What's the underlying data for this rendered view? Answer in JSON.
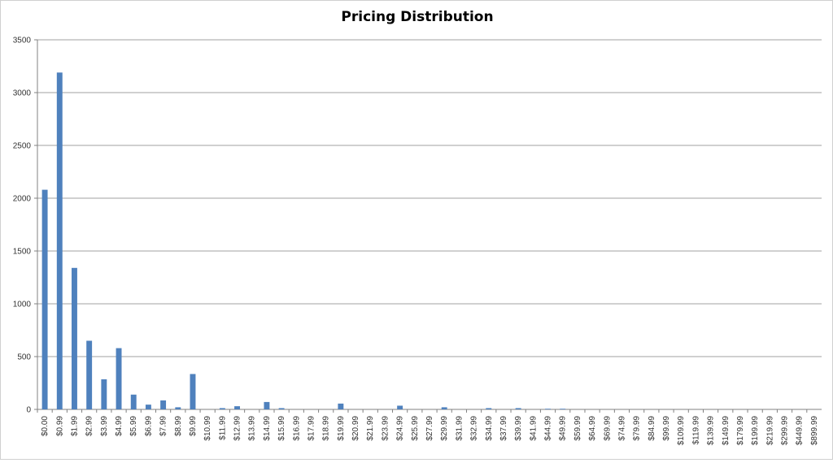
{
  "chart_data": {
    "type": "bar",
    "title": "Pricing Distribution",
    "xlabel": "",
    "ylabel": "",
    "ylim": [
      0,
      3500
    ],
    "yticks": [
      0,
      500,
      1000,
      1500,
      2000,
      2500,
      3000,
      3500
    ],
    "grid": true,
    "legend": "none",
    "bar_color": "#4f81bd",
    "gridline_color": "#a0a0a0",
    "categories": [
      "$0.00",
      "$0.99",
      "$1.99",
      "$2.99",
      "$3.99",
      "$4.99",
      "$5.99",
      "$6.99",
      "$7.99",
      "$8.99",
      "$9.99",
      "$10.99",
      "$11.99",
      "$12.99",
      "$13.99",
      "$14.99",
      "$15.99",
      "$16.99",
      "$17.99",
      "$18.99",
      "$19.99",
      "$20.99",
      "$21.99",
      "$23.99",
      "$24.99",
      "$25.99",
      "$27.99",
      "$29.99",
      "$31.99",
      "$32.99",
      "$34.99",
      "$37.99",
      "$39.99",
      "$41.99",
      "$44.99",
      "$49.99",
      "$59.99",
      "$64.99",
      "$69.99",
      "$74.99",
      "$79.99",
      "$84.99",
      "$99.99",
      "$109.99",
      "$119.99",
      "$139.99",
      "$149.99",
      "$179.99",
      "$199.99",
      "$219.99",
      "$299.99",
      "$449.99",
      "$899.99"
    ],
    "values": [
      2080,
      3190,
      1340,
      650,
      285,
      580,
      140,
      45,
      85,
      20,
      335,
      0,
      12,
      30,
      0,
      70,
      12,
      0,
      0,
      0,
      55,
      0,
      0,
      0,
      35,
      0,
      0,
      20,
      0,
      0,
      12,
      0,
      12,
      0,
      6,
      6,
      0,
      0,
      0,
      0,
      0,
      0,
      0,
      0,
      0,
      0,
      0,
      0,
      0,
      0,
      0,
      0,
      0
    ]
  }
}
